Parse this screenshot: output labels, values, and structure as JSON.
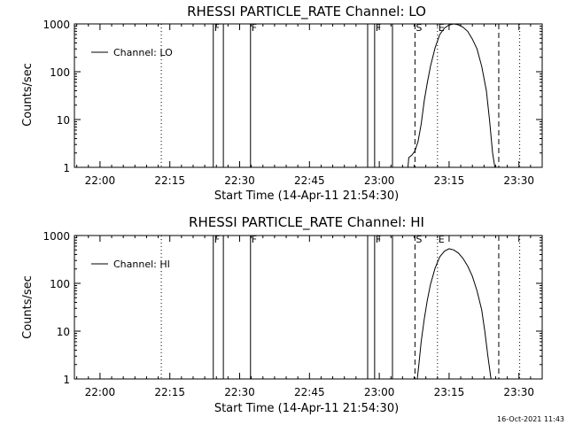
{
  "footer_timestamp": "16-Oct-2021 11:43",
  "chart_data": [
    {
      "type": "line",
      "title": "RHESSI PARTICLE_RATE Channel: LO",
      "xlabel": "Start Time (14-Apr-11 21:54:30)",
      "ylabel": "Counts/sec",
      "legend": {
        "label": "Channel: LO",
        "placement": "top-left"
      },
      "yscale": "log",
      "ylim": [
        1,
        1000
      ],
      "xlim": [
        "21:54:30",
        "23:35:00"
      ],
      "x_ticks": [
        "22:00",
        "22:15",
        "22:30",
        "22:45",
        "23:00",
        "23:15",
        "23:30"
      ],
      "y_ticks": [
        "1",
        "10",
        "100",
        "1000"
      ],
      "markers": [
        {
          "kind": "dotted",
          "time": "22:13:10"
        },
        {
          "kind": "solid",
          "time": "22:24:20",
          "label": "F"
        },
        {
          "kind": "solid",
          "time": "22:26:30"
        },
        {
          "kind": "solid",
          "time": "22:32:20",
          "label": "F"
        },
        {
          "kind": "solid",
          "time": "22:57:30"
        },
        {
          "kind": "solid",
          "time": "22:59:00",
          "label": "F"
        },
        {
          "kind": "solid",
          "time": "23:02:50"
        },
        {
          "kind": "dashed",
          "time": "23:07:40",
          "label": "S"
        },
        {
          "kind": "dotted",
          "time": "23:12:30",
          "label": "E"
        },
        {
          "kind": "dashed",
          "time": "23:25:40"
        },
        {
          "kind": "dotted",
          "time": "23:30:10"
        }
      ],
      "series": [
        {
          "name": "Channel: LO",
          "points": [
            [
              "23:06:10",
              1
            ],
            [
              "23:06:20",
              1.6
            ],
            [
              "23:07:00",
              1.8
            ],
            [
              "23:07:40",
              2.2
            ],
            [
              "23:08:20",
              3.5
            ],
            [
              "23:09:00",
              8
            ],
            [
              "23:09:40",
              25
            ],
            [
              "23:10:20",
              60
            ],
            [
              "23:11:00",
              130
            ],
            [
              "23:12:00",
              320
            ],
            [
              "23:13:00",
              600
            ],
            [
              "23:14:00",
              820
            ],
            [
              "23:15:00",
              950
            ],
            [
              "23:16:00",
              1000
            ],
            [
              "23:17:00",
              960
            ],
            [
              "23:18:00",
              850
            ],
            [
              "23:19:00",
              700
            ],
            [
              "23:20:00",
              480
            ],
            [
              "23:21:00",
              300
            ],
            [
              "23:22:00",
              130
            ],
            [
              "23:23:00",
              40
            ],
            [
              "23:23:40",
              10
            ],
            [
              "23:24:20",
              2
            ],
            [
              "23:24:50",
              1
            ]
          ]
        }
      ]
    },
    {
      "type": "line",
      "title": "RHESSI PARTICLE_RATE Channel: HI",
      "xlabel": "Start Time (14-Apr-11 21:54:30)",
      "ylabel": "Counts/sec",
      "legend": {
        "label": "Channel: HI",
        "placement": "top-left"
      },
      "yscale": "log",
      "ylim": [
        1,
        1000
      ],
      "xlim": [
        "21:54:30",
        "23:35:00"
      ],
      "x_ticks": [
        "22:00",
        "22:15",
        "22:30",
        "22:45",
        "23:00",
        "23:15",
        "23:30"
      ],
      "y_ticks": [
        "1",
        "10",
        "100",
        "1000"
      ],
      "markers": [
        {
          "kind": "dotted",
          "time": "22:13:10"
        },
        {
          "kind": "solid",
          "time": "22:24:20",
          "label": "F"
        },
        {
          "kind": "solid",
          "time": "22:26:30"
        },
        {
          "kind": "solid",
          "time": "22:32:20",
          "label": "F"
        },
        {
          "kind": "solid",
          "time": "22:57:30"
        },
        {
          "kind": "solid",
          "time": "22:59:00",
          "label": "F"
        },
        {
          "kind": "solid",
          "time": "23:02:50"
        },
        {
          "kind": "dashed",
          "time": "23:07:40",
          "label": "S"
        },
        {
          "kind": "dotted",
          "time": "23:12:30",
          "label": "E"
        },
        {
          "kind": "dashed",
          "time": "23:25:40"
        },
        {
          "kind": "dotted",
          "time": "23:30:10"
        }
      ],
      "series": [
        {
          "name": "Channel: HI",
          "points": [
            [
              "23:08:10",
              1
            ],
            [
              "23:08:30",
              2
            ],
            [
              "23:09:00",
              6
            ],
            [
              "23:09:40",
              18
            ],
            [
              "23:10:20",
              45
            ],
            [
              "23:11:00",
              95
            ],
            [
              "23:12:00",
              210
            ],
            [
              "23:13:00",
              360
            ],
            [
              "23:14:00",
              470
            ],
            [
              "23:15:00",
              530
            ],
            [
              "23:16:00",
              500
            ],
            [
              "23:17:00",
              430
            ],
            [
              "23:18:00",
              330
            ],
            [
              "23:19:00",
              230
            ],
            [
              "23:20:00",
              140
            ],
            [
              "23:21:00",
              70
            ],
            [
              "23:22:00",
              28
            ],
            [
              "23:22:40",
              10
            ],
            [
              "23:23:20",
              3
            ],
            [
              "23:24:00",
              1
            ]
          ]
        }
      ]
    }
  ]
}
